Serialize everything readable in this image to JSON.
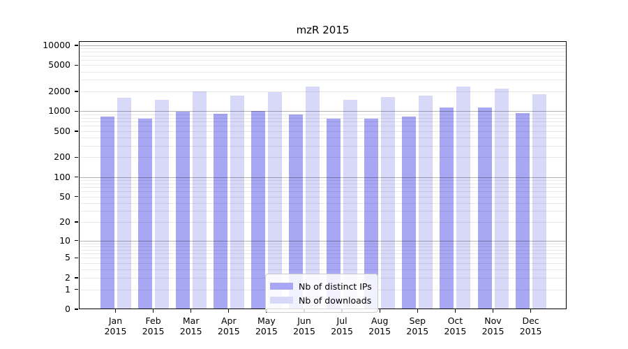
{
  "chart_data": {
    "type": "bar",
    "title": "mzR 2015",
    "categories": [
      "Jan 2015",
      "Feb 2015",
      "Mar 2015",
      "Apr 2015",
      "May 2015",
      "Jun 2015",
      "Jul 2015",
      "Aug 2015",
      "Sep 2015",
      "Oct 2015",
      "Nov 2015",
      "Dec 2015"
    ],
    "series": [
      {
        "name": "Nb of distinct IPs",
        "color": "#a7a7f3",
        "values": [
          840,
          770,
          980,
          920,
          1000,
          900,
          780,
          780,
          840,
          1150,
          1140,
          950
        ]
      },
      {
        "name": "Nb of downloads",
        "color": "#d8d8f8",
        "values": [
          1610,
          1480,
          2010,
          1740,
          1950,
          2360,
          1480,
          1640,
          1720,
          2400,
          2200,
          1810
        ]
      }
    ],
    "xlabel": "",
    "ylabel": "",
    "yscale": "log1p",
    "y_ticks": [
      0,
      1,
      2,
      5,
      10,
      20,
      50,
      100,
      200,
      500,
      1000,
      2000,
      5000,
      10000
    ],
    "ylim": [
      0,
      11400
    ],
    "grid": "horizontal, minor and major (majors at powers of 10)",
    "legend_position": "lower center"
  }
}
